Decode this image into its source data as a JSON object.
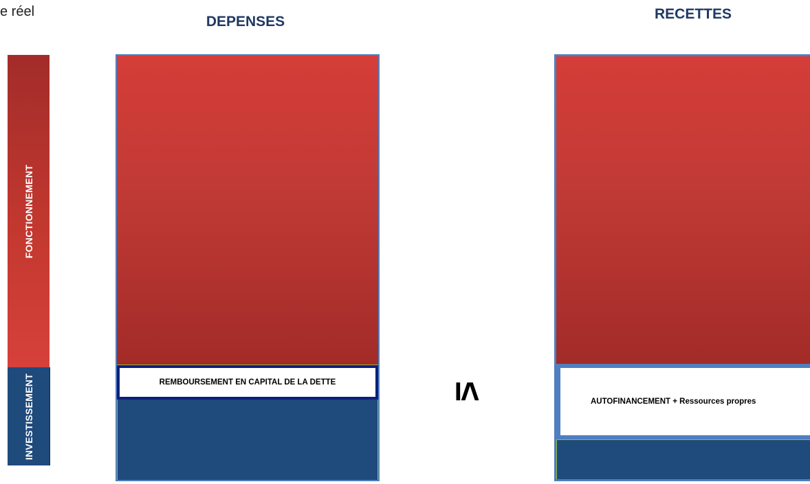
{
  "corner_text": "e réel",
  "headings": {
    "depenses": "DEPENSES",
    "recettes": "RECETTES"
  },
  "axis": {
    "fonctionnement": "FONCTIONNEMENT",
    "investissement": "INVESTISSEMENT"
  },
  "depenses": {
    "debt_repayment": "REMBOURSEMENT EN CAPITAL DE LA DETTE"
  },
  "relation_symbol": "≤",
  "recettes": {
    "autofinancement": "AUTOFINANCEMENT + Ressources propres"
  },
  "colors": {
    "fonctionnement_red": "#c0392f",
    "investissement_blue": "#1f4a7c",
    "heading_blue": "#1f3864",
    "border_blue": "#4f7fc0",
    "debt_border": "#0b1f7a",
    "outline_green": "#8dbb3a"
  }
}
